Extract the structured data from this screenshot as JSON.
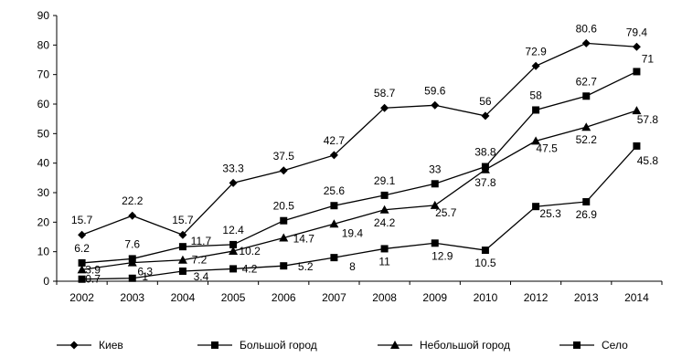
{
  "chart_data": {
    "type": "line",
    "categories": [
      "2002",
      "2003",
      "2004",
      "2005",
      "2006",
      "2007",
      "2008",
      "2009",
      "2010",
      "2012",
      "2013",
      "2014"
    ],
    "ylim": [
      0,
      90
    ],
    "yticks": [
      "0",
      "10",
      "20",
      "30",
      "40",
      "50",
      "60",
      "70",
      "80",
      "90"
    ],
    "grid": false,
    "legend_position": "bottom",
    "series": [
      {
        "name": "Киев",
        "marker": "diamond",
        "values": [
          15.7,
          22.2,
          15.7,
          33.3,
          37.5,
          42.7,
          58.7,
          59.6,
          56,
          72.9,
          80.6,
          79.4
        ],
        "labels": [
          "15.7",
          "22.2",
          "15.7",
          "33.3",
          "37.5",
          "42.7",
          "58.7",
          "59.6",
          "56",
          "72.9",
          "80.6",
          "79.4"
        ]
      },
      {
        "name": "Большой город",
        "marker": "square",
        "values": [
          6.2,
          7.6,
          11.7,
          12.4,
          20.5,
          25.6,
          29.1,
          33,
          38.8,
          58,
          62.7,
          71
        ],
        "labels": [
          "6.2",
          "7.6",
          "11.7",
          "12.4",
          "20.5",
          "25.6",
          "29.1",
          "33",
          "38.8",
          "58",
          "62.7",
          "71"
        ]
      },
      {
        "name": "Небольшой город",
        "marker": "triangle",
        "values": [
          3.9,
          6.3,
          7.2,
          10.2,
          14.7,
          19.4,
          24.2,
          25.7,
          37.8,
          47.5,
          52.2,
          57.8
        ],
        "labels": [
          "3.9",
          "6.3",
          "7.2",
          "10.2",
          "14.7",
          "19.4",
          "24.2",
          "25.7",
          "37.8",
          "47.5",
          "52.2",
          "57.8"
        ]
      },
      {
        "name": "Село",
        "marker": "square",
        "values": [
          0.7,
          1,
          3.4,
          4.2,
          5.2,
          8,
          11,
          12.9,
          10.5,
          25.3,
          26.9,
          45.8
        ],
        "labels": [
          "0.7",
          "1",
          "3.4",
          "4.2",
          "5.2",
          "8",
          "11",
          "12.9",
          "10.5",
          "25.3",
          "26.9",
          "45.8"
        ]
      }
    ]
  }
}
